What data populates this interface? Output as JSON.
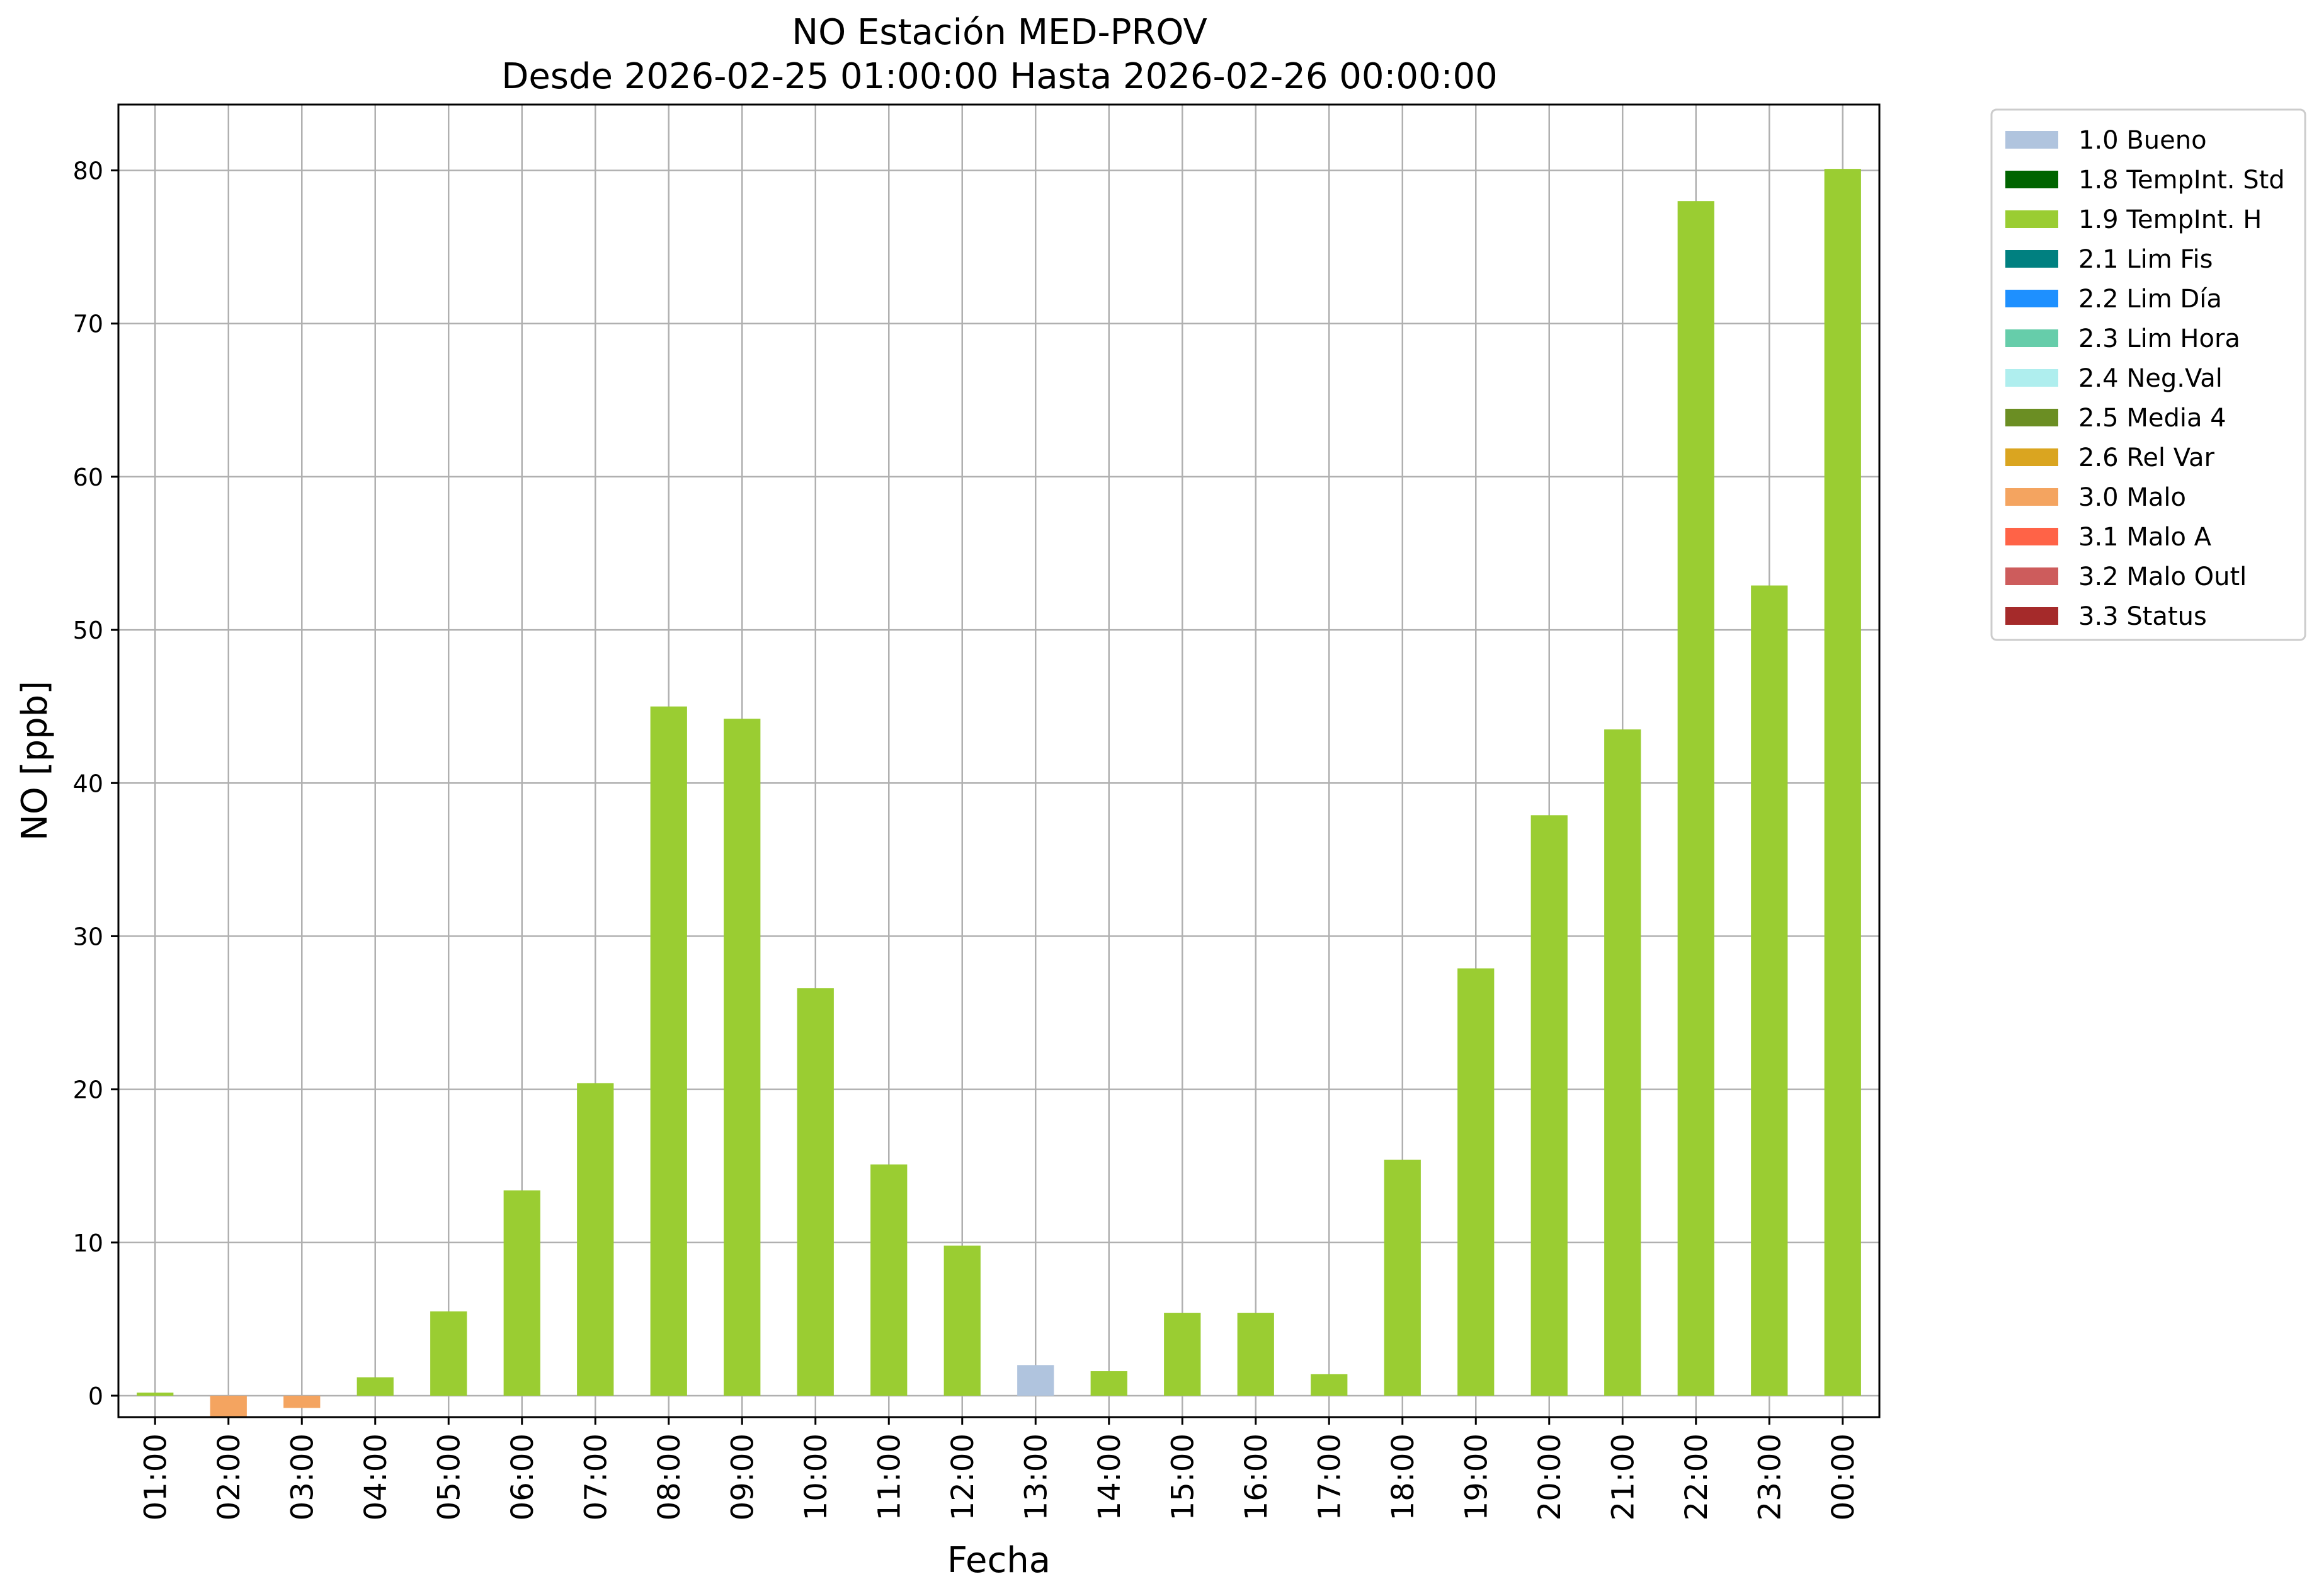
{
  "chart_data": {
    "type": "bar",
    "title": "NO Estación MED-PROV",
    "subtitle": "Desde 2026-02-25 01:00:00 Hasta 2026-02-26 00:00:00",
    "xlabel": "Fecha",
    "ylabel": "NO [ppb]",
    "ylim": [
      -1.4,
      84.3
    ],
    "yticks": [
      0,
      10,
      20,
      30,
      40,
      50,
      60,
      70,
      80
    ],
    "grid": true,
    "legend_position": "outside-top-right",
    "categories": [
      "01:00",
      "02:00",
      "03:00",
      "04:00",
      "05:00",
      "06:00",
      "07:00",
      "08:00",
      "09:00",
      "10:00",
      "11:00",
      "12:00",
      "13:00",
      "14:00",
      "15:00",
      "16:00",
      "17:00",
      "18:00",
      "19:00",
      "20:00",
      "21:00",
      "22:00",
      "23:00",
      "00:00"
    ],
    "values": [
      0.2,
      -1.4,
      -0.8,
      1.2,
      5.5,
      13.4,
      20.4,
      45.0,
      44.2,
      26.6,
      15.1,
      9.8,
      2.0,
      1.6,
      5.4,
      5.4,
      1.4,
      15.4,
      27.9,
      37.9,
      43.5,
      78.0,
      52.9,
      80.1
    ],
    "flags": [
      "1.9",
      "3.0",
      "3.0",
      "1.9",
      "1.9",
      "1.9",
      "1.9",
      "1.9",
      "1.9",
      "1.9",
      "1.9",
      "1.9",
      "1.0",
      "1.9",
      "1.9",
      "1.9",
      "1.9",
      "1.9",
      "1.9",
      "1.9",
      "1.9",
      "1.9",
      "1.9",
      "1.9"
    ],
    "legend": [
      {
        "code": "1.0",
        "label": "1.0 Bueno",
        "color": "#b0c4de"
      },
      {
        "code": "1.8",
        "label": "1.8 TempInt. Std",
        "color": "#006400"
      },
      {
        "code": "1.9",
        "label": "1.9 TempInt. H",
        "color": "#9acd32"
      },
      {
        "code": "2.1",
        "label": "2.1 Lim Fis",
        "color": "#008080"
      },
      {
        "code": "2.2",
        "label": "2.2 Lim Día",
        "color": "#1e90ff"
      },
      {
        "code": "2.3",
        "label": "2.3 Lim Hora",
        "color": "#66cdaa"
      },
      {
        "code": "2.4",
        "label": "2.4 Neg.Val",
        "color": "#afeeee"
      },
      {
        "code": "2.5",
        "label": "2.5 Media 4",
        "color": "#6b8e23"
      },
      {
        "code": "2.6",
        "label": "2.6 Rel Var",
        "color": "#daa520"
      },
      {
        "code": "3.0",
        "label": "3.0 Malo",
        "color": "#f4a460"
      },
      {
        "code": "3.1",
        "label": "3.1 Malo A",
        "color": "#ff6347"
      },
      {
        "code": "3.2",
        "label": "3.2 Malo Outl",
        "color": "#cd5c5c"
      },
      {
        "code": "3.3",
        "label": "3.3 Status",
        "color": "#a52a2a"
      }
    ]
  }
}
